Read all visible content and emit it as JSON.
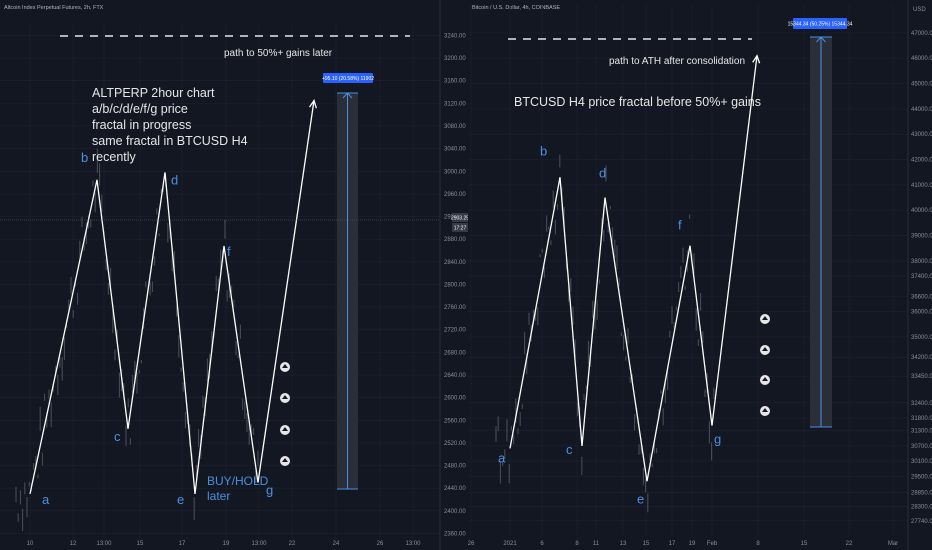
{
  "colors": {
    "background": "#131722",
    "grid": "#1e2230",
    "text": "#e6e6e6",
    "label_blue": "#4a90e2",
    "badge_blue": "#2962ff",
    "candle": "#6b6f78"
  },
  "chart_data": [
    {
      "type": "line",
      "title": "Altcoin Index Perpetual Futures, 2h, FTX",
      "x_ticks": [
        "10",
        "12",
        "13:00",
        "15",
        "17",
        "19",
        "13:00",
        "22",
        "24",
        "26",
        "13:00"
      ],
      "y_ticks": [
        "2360.00",
        "2400.00",
        "2440.00",
        "2480.00",
        "2520.00",
        "2560.00",
        "2600.00",
        "2640.00",
        "2680.00",
        "2720.00",
        "2760.00",
        "2800.00",
        "2840.00",
        "2880.00",
        "2920.00",
        "2960.00",
        "3000.00",
        "3040.00",
        "3080.00",
        "3120.00",
        "3160.00",
        "3200.00",
        "3240.00"
      ],
      "ylim": [
        2352,
        3262
      ],
      "current_price_labels": [
        "2903.25",
        "17:27"
      ],
      "series": [
        {
          "points": [
            {
              "label": "a",
              "x": 30,
              "y": 2430
            },
            {
              "label": "b",
              "x": 97,
              "y": 2985
            },
            {
              "label": "c",
              "x": 128,
              "y": 2545
            },
            {
              "label": "d",
              "x": 165,
              "y": 2998
            },
            {
              "label": "e",
              "x": 195,
              "y": 2430
            },
            {
              "label": "f",
              "x": 224,
              "y": 2868
            },
            {
              "label": "g",
              "x": 258,
              "y": 2450
            },
            {
              "label": "",
              "x": 314,
              "y": 3125
            }
          ]
        }
      ],
      "text_annotations": {
        "heading": [
          "ALTPERP 2hour chart",
          "a/b/c/d/e/f/g price",
          "fractal in progress",
          "same fractal in BTCUSD H4",
          "recently"
        ],
        "target_text": "path to 50%+ gains later",
        "buy_text": [
          "BUY/HOLD",
          "later"
        ]
      },
      "measure_label": "+95.10 (20.58%) 11902"
    },
    {
      "type": "line",
      "title": "Bitcoin / U.S. Dollar, 4h, COINBASE",
      "y_axis_label": "USD",
      "x_ticks": [
        "26",
        "2021",
        "6",
        "8",
        "11",
        "13",
        "15",
        "17",
        "19",
        "Feb",
        "8",
        "15",
        "22",
        "Mar"
      ],
      "y_ticks": [
        "47000.00",
        "46000.00",
        "45000.00",
        "44000.00",
        "43000.00",
        "42000.00",
        "41000.00",
        "40000.00",
        "39000.00",
        "38000.00",
        "37400.00",
        "36600.00",
        "36000.00",
        "35000.00",
        "34200.00",
        "33450.00",
        "32400.00",
        "31800.00",
        "31300.00",
        "30700.00",
        "30100.00",
        "29500.00",
        "28850.00",
        "28300.00",
        "27740.00"
      ],
      "ylim": [
        27300,
        48100
      ],
      "current_price_labels": [],
      "series": [
        {
          "points": [
            {
              "label": "a",
              "x": 510,
              "y": 30600
            },
            {
              "label": "b",
              "x": 560,
              "y": 41300
            },
            {
              "label": "c",
              "x": 582,
              "y": 30700
            },
            {
              "label": "d",
              "x": 605,
              "y": 40500
            },
            {
              "label": "e",
              "x": 647,
              "y": 29300
            },
            {
              "label": "f",
              "x": 690,
              "y": 38600
            },
            {
              "label": "g",
              "x": 712,
              "y": 31500
            },
            {
              "label": "",
              "x": 757,
              "y": 46100
            }
          ]
        }
      ],
      "text_annotations": {
        "heading": [
          "BTCUSD H4 price fractal before 50%+ gains"
        ],
        "target_text": "path to ATH after consolidation"
      },
      "measure_label": "15344.34 (50.25%) 15344.34"
    }
  ],
  "labels": {
    "a": "a",
    "b": "b",
    "c": "c",
    "d": "d",
    "e": "e",
    "f": "f",
    "g": "g"
  }
}
